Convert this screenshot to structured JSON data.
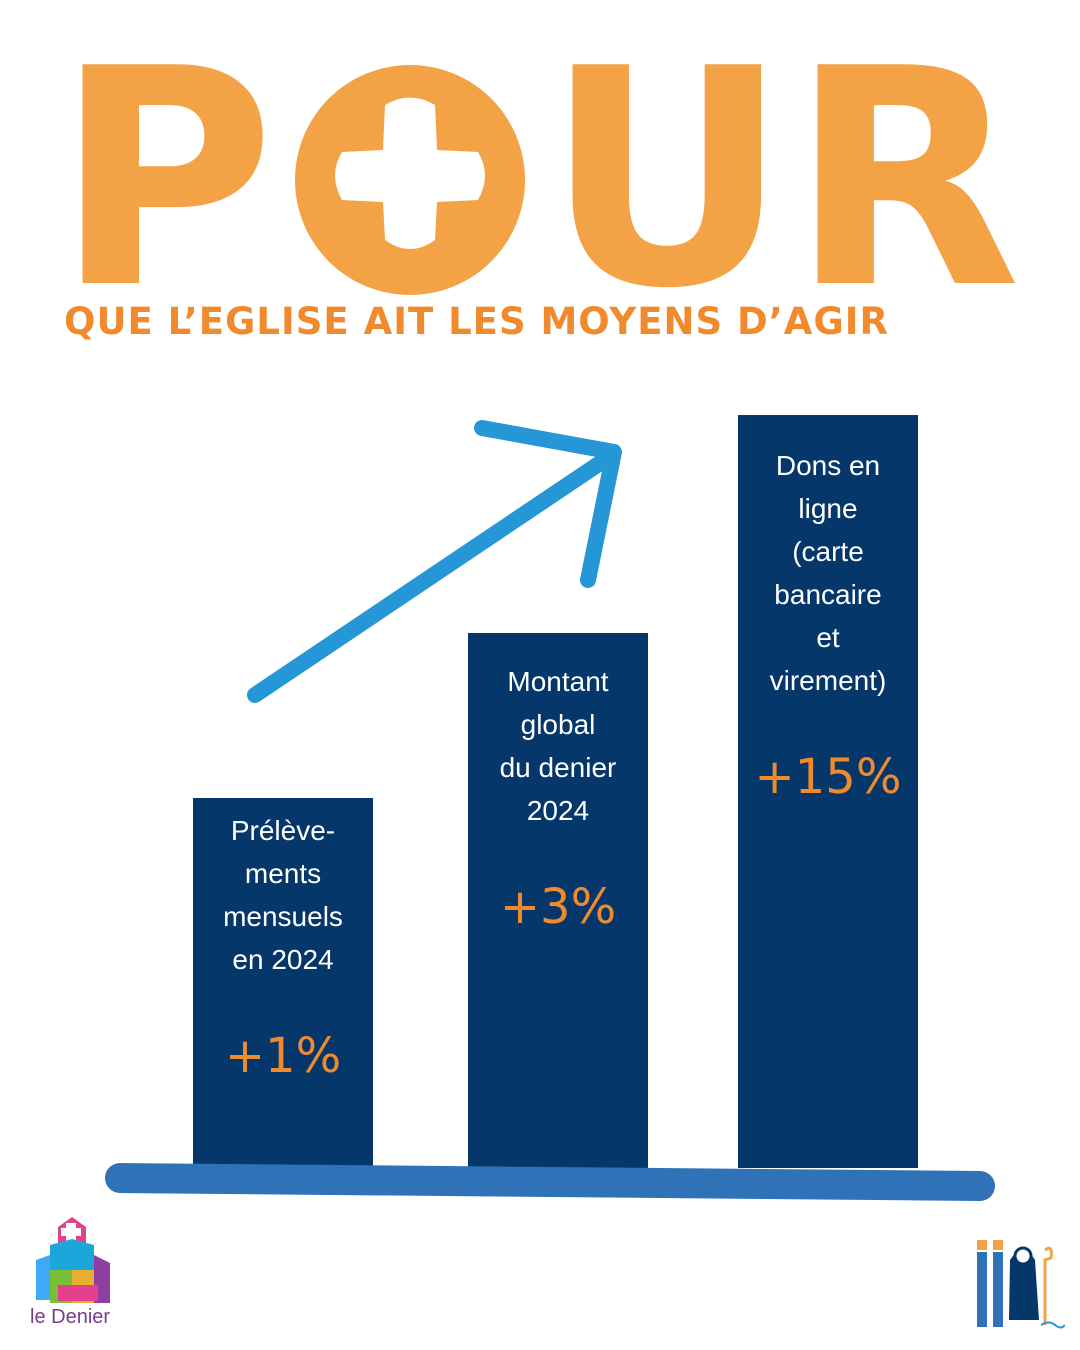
{
  "headline": {
    "letters": [
      "P",
      "U",
      "R"
    ],
    "subtitle": "QUE L’EGLISE AIT LES MOYENS D’AGIR",
    "color": "#F4A246"
  },
  "chart_data": {
    "type": "bar",
    "categories": [
      [
        "Prélève-",
        "ments",
        "mensuels",
        "en 2024"
      ],
      [
        "Montant",
        "global",
        "du denier",
        "2024"
      ],
      [
        "Dons en",
        "ligne",
        "(carte",
        "bancaire",
        "et",
        "virement)"
      ]
    ],
    "values": [
      1,
      3,
      15
    ],
    "value_labels": [
      "+1%",
      "+3%",
      "+15%"
    ],
    "bar_color": "#05376B",
    "label_color": "#FFFFFF",
    "value_color": "#F08A2C",
    "baseline_color": "#2F72B8",
    "arrow_color": "#2597D6",
    "title": "",
    "xlabel": "",
    "ylabel": "",
    "grid": false,
    "legend": "none"
  },
  "logos": {
    "left_text": "le Denier"
  }
}
